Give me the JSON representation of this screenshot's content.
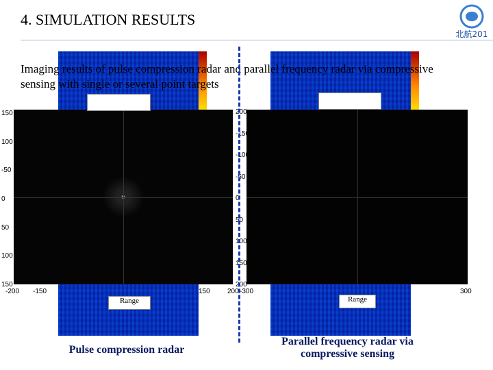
{
  "header": {
    "title": "4. SIMULATION RESULTS",
    "logo_text": "北航201"
  },
  "subtitle": "Imaging results of pulse compression radar and parallel frequency radar via compressive sensing with single or several point targets",
  "panels": [
    {
      "caption": "Pulse compression radar",
      "axis_label": "Range",
      "y_ticks": [
        "150",
        "100",
        "-50",
        "0",
        "50",
        "100",
        "150"
      ],
      "x_ticks": [
        "-200",
        "-150",
        "150",
        "200"
      ]
    },
    {
      "caption": "Parallel frequency radar via compressive sensing",
      "axis_label": "Range",
      "y_ticks": [
        "200",
        "-150",
        "-100",
        "-50",
        "0",
        "50",
        "100",
        "150",
        "200"
      ],
      "x_ticks": [
        "-300",
        "300"
      ]
    }
  ]
}
